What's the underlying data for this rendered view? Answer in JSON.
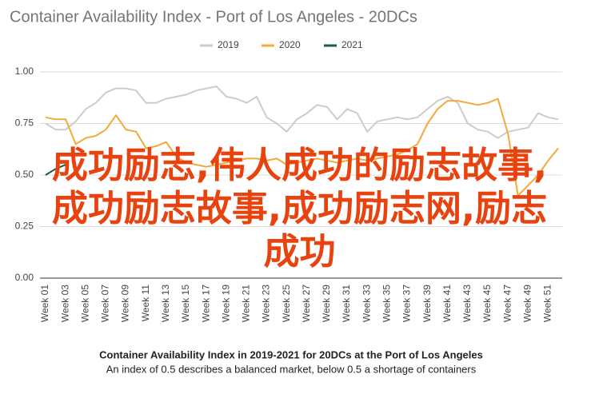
{
  "chart_data": {
    "type": "line",
    "title": "Container Availability Index - Port of Los Angeles - 20DCs",
    "caption": "Container Availability Index in 2019-2021 for 20DCs at the Port of Los Angeles",
    "subcaption": "An index of 0.5 describes a balanced market, below 0.5 a shortage of containers",
    "overlay_text": [
      "成功励志,伟人成功的励志故事,",
      "成功励志故事,成功励志网,励志",
      "成功"
    ],
    "categories": [
      "Week 01",
      null,
      "Week 03",
      null,
      "Week 05",
      null,
      "Week 07",
      null,
      "Week 09",
      null,
      "Week 11",
      null,
      "Week 13",
      null,
      "Week 15",
      null,
      "Week 17",
      null,
      "Week 19",
      null,
      "Week 21",
      null,
      "Week 23",
      null,
      "Week 25",
      null,
      "Week 27",
      null,
      "Week 29",
      null,
      "Week 31",
      null,
      "Week 33",
      null,
      "Week 35",
      null,
      "Week 37",
      null,
      "Week 39",
      null,
      "Week 41",
      null,
      "Week 43",
      null,
      "Week 45",
      null,
      "Week 47",
      null,
      "Week 49",
      null,
      "Week 51",
      null
    ],
    "series": [
      {
        "name": "2019",
        "color": "#cccccc",
        "values": [
          0.75,
          0.72,
          0.72,
          0.76,
          0.82,
          0.85,
          0.9,
          0.92,
          0.92,
          0.91,
          0.85,
          0.85,
          0.87,
          0.88,
          0.89,
          0.91,
          0.92,
          0.93,
          0.88,
          0.87,
          0.85,
          0.88,
          0.78,
          0.75,
          0.71,
          0.77,
          0.8,
          0.84,
          0.83,
          0.77,
          0.82,
          0.8,
          0.71,
          0.76,
          0.77,
          0.78,
          0.77,
          0.78,
          0.82,
          0.86,
          0.88,
          0.85,
          0.75,
          0.72,
          0.71,
          0.68,
          0.71,
          0.72,
          0.73,
          0.8,
          0.78,
          0.77
        ]
      },
      {
        "name": "2020",
        "color": "#f4a93a",
        "values": [
          0.78,
          0.77,
          0.77,
          0.65,
          0.68,
          0.69,
          0.72,
          0.79,
          0.72,
          0.71,
          0.63,
          0.64,
          0.66,
          0.59,
          0.56,
          0.55,
          0.54,
          0.55,
          0.56,
          0.57,
          0.58,
          0.58,
          0.57,
          0.58,
          0.55,
          0.56,
          0.57,
          0.58,
          0.57,
          0.56,
          0.57,
          0.58,
          0.57,
          0.58,
          0.59,
          0.6,
          0.62,
          0.65,
          0.75,
          0.82,
          0.86,
          0.86,
          0.85,
          0.84,
          0.85,
          0.87,
          0.7,
          0.4,
          0.45,
          0.5,
          0.57,
          0.63
        ]
      },
      {
        "name": "2021",
        "color": "#1b5e3b",
        "values": [
          0.5,
          0.53,
          0.55,
          null,
          null,
          null,
          null,
          null,
          null,
          null,
          null,
          null,
          null,
          null,
          null,
          null,
          null,
          null,
          null,
          null,
          null,
          null,
          null,
          null,
          null,
          null,
          null,
          null,
          null,
          null,
          null,
          null,
          null,
          null,
          null,
          null,
          null,
          null,
          null,
          null,
          null,
          null,
          null,
          null,
          null,
          null,
          null,
          null,
          null,
          null,
          null,
          null
        ]
      }
    ],
    "ylim": [
      0,
      1
    ],
    "yticks": [
      {
        "value": 0,
        "label": "0.00"
      },
      {
        "value": 0.25,
        "label": "0.25"
      },
      {
        "value": 0.5,
        "label": "0.50"
      },
      {
        "value": 0.75,
        "label": "0.75"
      },
      {
        "value": 1,
        "label": "1.00"
      }
    ],
    "grid": true,
    "legend": "top"
  }
}
